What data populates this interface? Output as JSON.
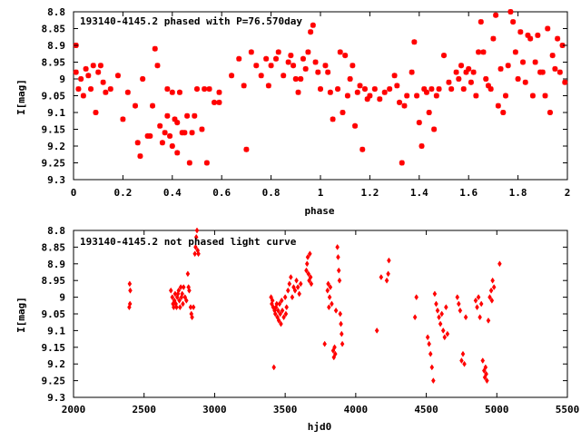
{
  "chart_data": [
    {
      "type": "scatter",
      "title": "193140-4145.2 phased with P=76.570day",
      "xlabel": "phase",
      "ylabel": "I[mag]",
      "xlim": [
        0,
        2
      ],
      "ylim": [
        9.3,
        8.8
      ],
      "y_inverted": true,
      "grid": false,
      "color": "#ff0000",
      "marker": "star",
      "x_ticks": [
        "0",
        "0.2",
        "0.4",
        "0.6",
        "0.8",
        "1",
        "1.2",
        "1.4",
        "1.6",
        "1.8",
        "2"
      ],
      "y_ticks": [
        "8.8",
        "8.85",
        "8.9",
        "8.95",
        "9",
        "9.05",
        "9.1",
        "9.15",
        "9.2",
        "9.25",
        "9.3"
      ],
      "points": [
        [
          0.01,
          8.9
        ],
        [
          0.01,
          8.98
        ],
        [
          0.02,
          9.03
        ],
        [
          0.03,
          9.0
        ],
        [
          0.04,
          9.05
        ],
        [
          0.05,
          8.97
        ],
        [
          0.06,
          8.99
        ],
        [
          0.07,
          9.03
        ],
        [
          0.08,
          8.96
        ],
        [
          0.09,
          9.1
        ],
        [
          0.1,
          8.98
        ],
        [
          0.11,
          8.96
        ],
        [
          0.12,
          9.01
        ],
        [
          0.13,
          9.04
        ],
        [
          0.15,
          9.03
        ],
        [
          0.18,
          8.99
        ],
        [
          0.2,
          9.12
        ],
        [
          0.22,
          9.04
        ],
        [
          0.25,
          9.08
        ],
        [
          0.26,
          9.19
        ],
        [
          0.27,
          9.23
        ],
        [
          0.28,
          9.0
        ],
        [
          0.3,
          9.17
        ],
        [
          0.31,
          9.17
        ],
        [
          0.32,
          9.08
        ],
        [
          0.33,
          8.91
        ],
        [
          0.34,
          8.96
        ],
        [
          0.35,
          9.14
        ],
        [
          0.36,
          9.19
        ],
        [
          0.37,
          9.16
        ],
        [
          0.38,
          9.03
        ],
        [
          0.38,
          9.11
        ],
        [
          0.39,
          9.17
        ],
        [
          0.4,
          9.2
        ],
        [
          0.4,
          9.04
        ],
        [
          0.41,
          9.12
        ],
        [
          0.42,
          9.13
        ],
        [
          0.42,
          9.22
        ],
        [
          0.43,
          9.04
        ],
        [
          0.44,
          9.16
        ],
        [
          0.45,
          9.16
        ],
        [
          0.46,
          9.11
        ],
        [
          0.47,
          9.25
        ],
        [
          0.48,
          9.16
        ],
        [
          0.49,
          9.11
        ],
        [
          0.5,
          9.03
        ],
        [
          0.52,
          9.15
        ],
        [
          0.53,
          9.03
        ],
        [
          0.54,
          9.25
        ],
        [
          0.55,
          9.03
        ],
        [
          0.57,
          9.07
        ],
        [
          0.59,
          9.07
        ],
        [
          0.59,
          9.04
        ],
        [
          0.64,
          8.99
        ],
        [
          0.67,
          8.94
        ],
        [
          0.69,
          9.02
        ],
        [
          0.7,
          9.21
        ],
        [
          0.72,
          8.92
        ],
        [
          0.74,
          8.96
        ],
        [
          0.76,
          8.99
        ],
        [
          0.78,
          8.94
        ],
        [
          0.79,
          9.02
        ],
        [
          0.8,
          8.96
        ],
        [
          0.82,
          8.94
        ],
        [
          0.83,
          8.92
        ],
        [
          0.85,
          8.99
        ],
        [
          0.87,
          8.95
        ],
        [
          0.88,
          8.93
        ],
        [
          0.89,
          8.96
        ],
        [
          0.9,
          9.0
        ],
        [
          0.91,
          9.04
        ],
        [
          0.92,
          9.0
        ],
        [
          0.93,
          8.94
        ],
        [
          0.94,
          8.97
        ],
        [
          0.95,
          8.92
        ],
        [
          0.96,
          8.86
        ],
        [
          0.97,
          8.84
        ],
        [
          0.98,
          8.95
        ],
        [
          0.99,
          8.98
        ],
        [
          1.0,
          9.03
        ],
        [
          1.02,
          8.96
        ],
        [
          1.03,
          8.98
        ],
        [
          1.04,
          9.04
        ],
        [
          1.05,
          9.12
        ],
        [
          1.07,
          9.03
        ],
        [
          1.08,
          8.92
        ],
        [
          1.09,
          9.1
        ],
        [
          1.1,
          8.93
        ],
        [
          1.11,
          9.05
        ],
        [
          1.12,
          9.0
        ],
        [
          1.13,
          8.96
        ],
        [
          1.14,
          9.14
        ],
        [
          1.15,
          9.04
        ],
        [
          1.16,
          9.02
        ],
        [
          1.17,
          9.21
        ],
        [
          1.18,
          9.03
        ],
        [
          1.19,
          9.06
        ],
        [
          1.2,
          9.05
        ],
        [
          1.22,
          9.03
        ],
        [
          1.24,
          9.06
        ],
        [
          1.26,
          9.04
        ],
        [
          1.28,
          9.03
        ],
        [
          1.3,
          8.99
        ],
        [
          1.31,
          9.02
        ],
        [
          1.32,
          9.07
        ],
        [
          1.33,
          9.25
        ],
        [
          1.34,
          9.08
        ],
        [
          1.35,
          9.05
        ],
        [
          1.37,
          8.98
        ],
        [
          1.38,
          8.89
        ],
        [
          1.39,
          9.05
        ],
        [
          1.4,
          9.13
        ],
        [
          1.41,
          9.2
        ],
        [
          1.42,
          9.03
        ],
        [
          1.43,
          9.04
        ],
        [
          1.44,
          9.1
        ],
        [
          1.45,
          9.03
        ],
        [
          1.46,
          9.15
        ],
        [
          1.47,
          9.05
        ],
        [
          1.48,
          9.03
        ],
        [
          1.5,
          8.93
        ],
        [
          1.52,
          9.01
        ],
        [
          1.53,
          9.03
        ],
        [
          1.55,
          8.98
        ],
        [
          1.56,
          9.0
        ],
        [
          1.57,
          8.96
        ],
        [
          1.58,
          9.03
        ],
        [
          1.59,
          8.98
        ],
        [
          1.6,
          8.97
        ],
        [
          1.61,
          9.01
        ],
        [
          1.62,
          8.98
        ],
        [
          1.63,
          9.05
        ],
        [
          1.64,
          8.92
        ],
        [
          1.65,
          8.83
        ],
        [
          1.66,
          8.92
        ],
        [
          1.67,
          9.0
        ],
        [
          1.68,
          9.02
        ],
        [
          1.69,
          9.03
        ],
        [
          1.7,
          8.88
        ],
        [
          1.71,
          8.81
        ],
        [
          1.72,
          9.08
        ],
        [
          1.73,
          8.97
        ],
        [
          1.74,
          9.1
        ],
        [
          1.75,
          9.05
        ],
        [
          1.76,
          8.96
        ],
        [
          1.77,
          8.8
        ],
        [
          1.78,
          8.83
        ],
        [
          1.79,
          8.92
        ],
        [
          1.8,
          9.0
        ],
        [
          1.81,
          8.86
        ],
        [
          1.82,
          8.95
        ],
        [
          1.83,
          9.01
        ],
        [
          1.84,
          8.87
        ],
        [
          1.85,
          8.88
        ],
        [
          1.86,
          9.05
        ],
        [
          1.87,
          8.95
        ],
        [
          1.88,
          8.87
        ],
        [
          1.89,
          8.98
        ],
        [
          1.9,
          8.98
        ],
        [
          1.91,
          9.05
        ],
        [
          1.92,
          8.85
        ],
        [
          1.93,
          9.1
        ],
        [
          1.94,
          8.93
        ],
        [
          1.95,
          8.97
        ],
        [
          1.96,
          8.88
        ],
        [
          1.97,
          8.98
        ],
        [
          1.98,
          8.9
        ],
        [
          1.99,
          9.01
        ]
      ]
    },
    {
      "type": "scatter",
      "title": "193140-4145.2 not phased light curve",
      "xlabel": "hjd0",
      "ylabel": "I[mag]",
      "xlim": [
        2000,
        5500
      ],
      "ylim": [
        9.3,
        8.8
      ],
      "y_inverted": true,
      "grid": false,
      "color": "#ff0000",
      "marker": "diamond",
      "x_ticks": [
        "2000",
        "2500",
        "3000",
        "3500",
        "4000",
        "4500",
        "5000",
        "5500"
      ],
      "y_ticks": [
        "8.8",
        "8.85",
        "8.9",
        "8.95",
        "9",
        "9.05",
        "9.1",
        "9.15",
        "9.2",
        "9.25",
        "9.3"
      ],
      "points": [
        [
          2395,
          9.03
        ],
        [
          2398,
          8.96
        ],
        [
          2400,
          9.02
        ],
        [
          2402,
          8.98
        ],
        [
          2690,
          8.98
        ],
        [
          2700,
          9.0
        ],
        [
          2705,
          9.02
        ],
        [
          2710,
          9.03
        ],
        [
          2715,
          9.01
        ],
        [
          2720,
          8.99
        ],
        [
          2725,
          9.02
        ],
        [
          2730,
          9.03
        ],
        [
          2735,
          9.0
        ],
        [
          2740,
          8.99
        ],
        [
          2745,
          8.98
        ],
        [
          2750,
          9.01
        ],
        [
          2755,
          9.03
        ],
        [
          2760,
          8.97
        ],
        [
          2765,
          9.0
        ],
        [
          2770,
          8.99
        ],
        [
          2775,
          9.02
        ],
        [
          2780,
          8.97
        ],
        [
          2790,
          9.0
        ],
        [
          2800,
          9.01
        ],
        [
          2810,
          8.93
        ],
        [
          2815,
          8.97
        ],
        [
          2820,
          8.98
        ],
        [
          2830,
          9.03
        ],
        [
          2835,
          9.05
        ],
        [
          2840,
          9.06
        ],
        [
          2850,
          9.03
        ],
        [
          2860,
          8.87
        ],
        [
          2865,
          8.85
        ],
        [
          2870,
          8.82
        ],
        [
          2875,
          8.8
        ],
        [
          2880,
          8.86
        ],
        [
          2885,
          8.87
        ],
        [
          3400,
          9.0
        ],
        [
          3405,
          9.02
        ],
        [
          3410,
          9.01
        ],
        [
          3415,
          9.03
        ],
        [
          3420,
          9.21
        ],
        [
          3425,
          9.04
        ],
        [
          3430,
          9.05
        ],
        [
          3435,
          9.03
        ],
        [
          3440,
          9.02
        ],
        [
          3445,
          9.06
        ],
        [
          3450,
          9.04
        ],
        [
          3455,
          9.07
        ],
        [
          3460,
          9.02
        ],
        [
          3465,
          9.05
        ],
        [
          3470,
          9.08
        ],
        [
          3475,
          9.01
        ],
        [
          3480,
          9.04
        ],
        [
          3490,
          9.06
        ],
        [
          3500,
          9.0
        ],
        [
          3505,
          9.05
        ],
        [
          3510,
          9.03
        ],
        [
          3520,
          8.98
        ],
        [
          3530,
          8.96
        ],
        [
          3540,
          8.94
        ],
        [
          3550,
          9.0
        ],
        [
          3560,
          8.97
        ],
        [
          3570,
          8.98
        ],
        [
          3580,
          8.95
        ],
        [
          3590,
          8.97
        ],
        [
          3600,
          8.99
        ],
        [
          3610,
          8.96
        ],
        [
          3650,
          8.92
        ],
        [
          3655,
          8.9
        ],
        [
          3660,
          8.88
        ],
        [
          3665,
          8.93
        ],
        [
          3670,
          8.95
        ],
        [
          3675,
          8.87
        ],
        [
          3680,
          8.94
        ],
        [
          3685,
          8.96
        ],
        [
          3780,
          9.14
        ],
        [
          3800,
          8.98
        ],
        [
          3805,
          8.96
        ],
        [
          3810,
          9.03
        ],
        [
          3815,
          9.0
        ],
        [
          3820,
          8.97
        ],
        [
          3830,
          9.02
        ],
        [
          3840,
          9.16
        ],
        [
          3845,
          9.18
        ],
        [
          3850,
          9.15
        ],
        [
          3855,
          9.17
        ],
        [
          3860,
          9.04
        ],
        [
          3870,
          8.85
        ],
        [
          3875,
          8.88
        ],
        [
          3880,
          8.92
        ],
        [
          3885,
          8.95
        ],
        [
          3890,
          9.05
        ],
        [
          3895,
          9.08
        ],
        [
          3900,
          9.11
        ],
        [
          3905,
          9.14
        ],
        [
          4150,
          9.1
        ],
        [
          4180,
          8.94
        ],
        [
          4220,
          8.95
        ],
        [
          4230,
          8.93
        ],
        [
          4235,
          8.89
        ],
        [
          4420,
          9.06
        ],
        [
          4430,
          9.0
        ],
        [
          4510,
          9.12
        ],
        [
          4520,
          9.14
        ],
        [
          4530,
          9.17
        ],
        [
          4540,
          9.21
        ],
        [
          4550,
          9.25
        ],
        [
          4560,
          8.99
        ],
        [
          4570,
          9.02
        ],
        [
          4580,
          9.04
        ],
        [
          4590,
          9.06
        ],
        [
          4600,
          9.08
        ],
        [
          4610,
          9.05
        ],
        [
          4620,
          9.1
        ],
        [
          4630,
          9.12
        ],
        [
          4640,
          9.03
        ],
        [
          4650,
          9.11
        ],
        [
          4720,
          9.0
        ],
        [
          4730,
          9.02
        ],
        [
          4740,
          9.04
        ],
        [
          4750,
          9.19
        ],
        [
          4760,
          9.17
        ],
        [
          4770,
          9.2
        ],
        [
          4780,
          9.06
        ],
        [
          4850,
          9.01
        ],
        [
          4860,
          9.03
        ],
        [
          4870,
          9.0
        ],
        [
          4880,
          9.06
        ],
        [
          4890,
          9.02
        ],
        [
          4900,
          9.19
        ],
        [
          4910,
          9.22
        ],
        [
          4915,
          9.24
        ],
        [
          4920,
          9.21
        ],
        [
          4925,
          9.23
        ],
        [
          4930,
          9.25
        ],
        [
          4940,
          9.07
        ],
        [
          4950,
          9.0
        ],
        [
          4960,
          8.98
        ],
        [
          4965,
          9.01
        ],
        [
          4970,
          8.95
        ],
        [
          4980,
          8.97
        ],
        [
          5020,
          8.9
        ]
      ]
    }
  ]
}
